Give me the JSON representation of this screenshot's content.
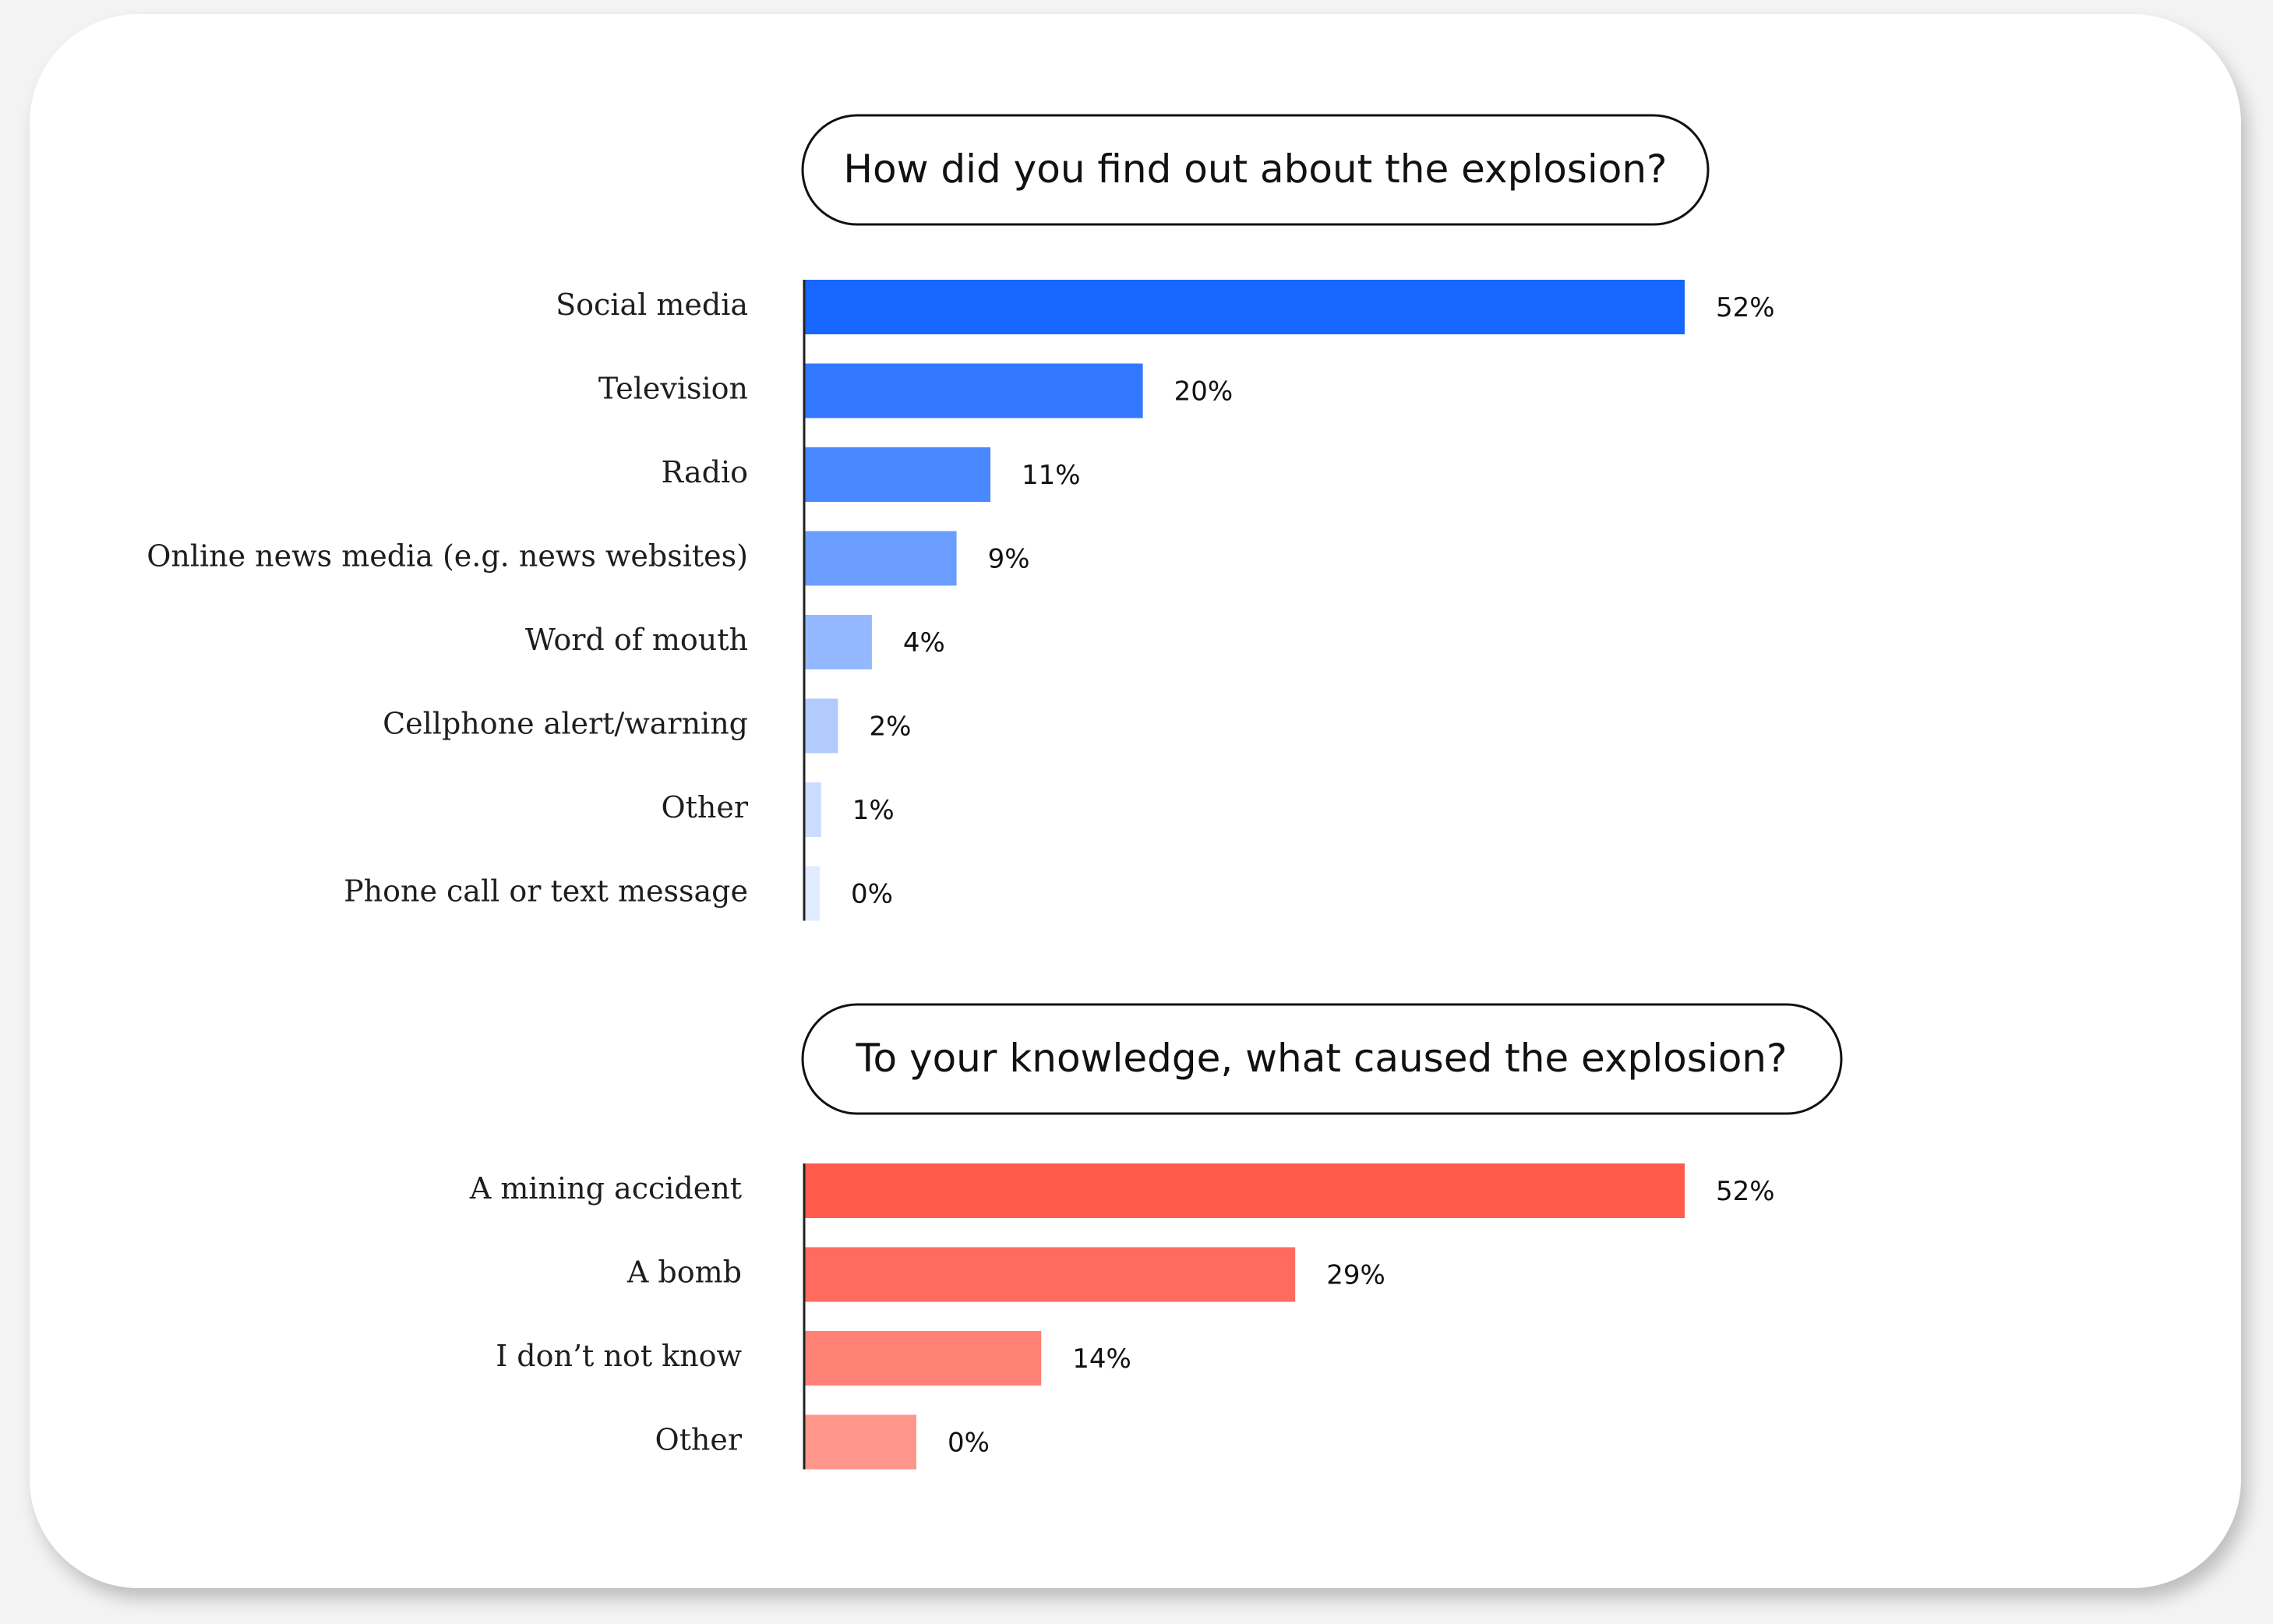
{
  "chart_data": [
    {
      "type": "bar",
      "orientation": "horizontal",
      "title": "How did you find out about the explosion?",
      "categories": [
        "Social media",
        "Television",
        "Radio",
        "Online news media (e.g. news websites)",
        "Word of mouth",
        "Cellphone alert/warning",
        "Other",
        "Phone call or text message"
      ],
      "values": [
        52,
        20,
        11,
        9,
        4,
        2,
        1,
        0
      ],
      "value_labels": [
        "52%",
        "20%",
        "11%",
        "9%",
        "4%",
        "2%",
        "1%",
        "0%"
      ],
      "unit": "%",
      "colors": [
        "#1766ff",
        "#3278ff",
        "#4a88ff",
        "#6a9dff",
        "#94b8ff",
        "#b2cbff",
        "#cbdcff",
        "#e1ebff"
      ]
    },
    {
      "type": "bar",
      "orientation": "horizontal",
      "title": "To your knowledge, what caused the explosion?",
      "categories": [
        "A mining accident",
        "A bomb",
        "I don’t not know",
        "Other"
      ],
      "values": [
        52,
        29,
        14,
        0
      ],
      "value_labels": [
        "52%",
        "29%",
        "14%",
        "0%"
      ],
      "unit": "%",
      "colors": [
        "#ff5a4b",
        "#ff6b5e",
        "#ff8175",
        "#ff968c"
      ]
    }
  ]
}
